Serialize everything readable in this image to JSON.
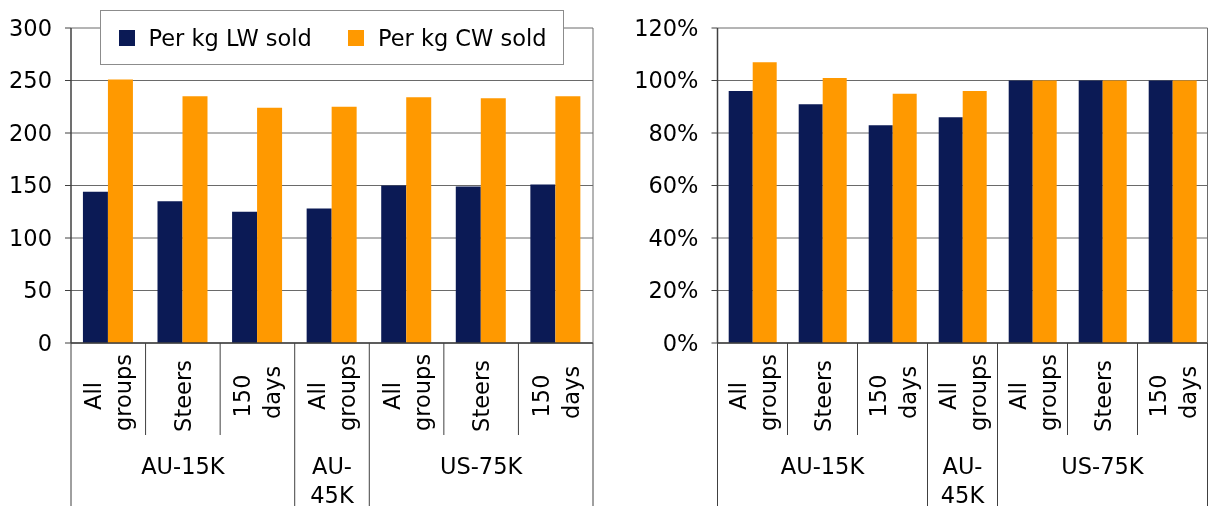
{
  "chart_data": [
    {
      "type": "bar",
      "categories": [
        "All groups",
        "Steers",
        "150 days",
        "All groups",
        "All groups",
        "Steers",
        "150 days"
      ],
      "series": [
        {
          "name": "Per kg LW sold",
          "color": "#0b1a55",
          "values": [
            144,
            135,
            125,
            128,
            150,
            149,
            151
          ]
        },
        {
          "name": "Per kg CW sold",
          "color": "#ff9900",
          "values": [
            251,
            235,
            224,
            225,
            234,
            233,
            235
          ]
        }
      ],
      "ylim": [
        0,
        300
      ],
      "yticks": [
        0,
        50,
        100,
        150,
        200,
        250,
        300
      ],
      "grid": "y",
      "legend": "top",
      "annotations": [
        "AU-15K",
        "AU-45K",
        "US-75K"
      ]
    },
    {
      "type": "bar",
      "categories": [
        "All groups",
        "Steers",
        "150 days",
        "All groups",
        "All groups",
        "Steers",
        "150 days"
      ],
      "series": [
        {
          "color": "#0b1a55",
          "values": [
            96,
            91,
            83,
            86,
            100,
            100,
            100
          ]
        },
        {
          "color": "#ff9900",
          "values": [
            107,
            101,
            95,
            96,
            100,
            100,
            100
          ]
        }
      ],
      "ylim": [
        0,
        120
      ],
      "yticks": [
        {
          "value": 0,
          "label": "0%"
        },
        {
          "value": 20,
          "label": "20%"
        },
        {
          "value": 40,
          "label": "40%"
        },
        {
          "value": 60,
          "label": "60%"
        },
        {
          "value": 80,
          "label": "80%"
        },
        {
          "value": 100,
          "label": "100%"
        },
        {
          "value": 120,
          "label": "120%"
        }
      ],
      "grid": "y",
      "annotations": [
        "AU-15K",
        "AU-45K",
        "US-75K"
      ]
    }
  ]
}
